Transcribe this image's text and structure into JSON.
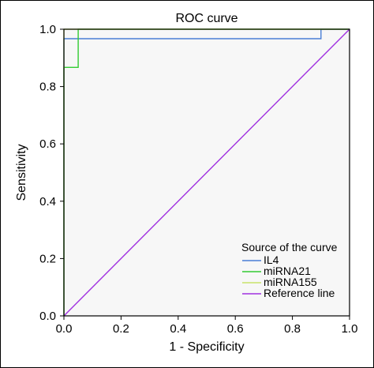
{
  "chart_data": {
    "type": "line",
    "title": "ROC curve",
    "xlabel": "1 - Specificity",
    "ylabel": "Sensitivity",
    "xlim": [
      0,
      1
    ],
    "ylim": [
      0,
      1
    ],
    "xticks": [
      "0.0",
      "0.2",
      "0.4",
      "0.6",
      "0.8",
      "1.0"
    ],
    "yticks": [
      "0.0",
      "0.2",
      "0.4",
      "0.6",
      "0.8",
      "1.0"
    ],
    "grid": false,
    "legend": {
      "title": "Source of the curve",
      "placement": "bottom-right"
    },
    "series": [
      {
        "name": "IL4",
        "color": "#4a7fd6",
        "points": [
          [
            0.0,
            0.0
          ],
          [
            0.0,
            0.967
          ],
          [
            0.9,
            0.967
          ],
          [
            0.9,
            1.0
          ],
          [
            1.0,
            1.0
          ]
        ]
      },
      {
        "name": "miRNA21",
        "color": "#33cc33",
        "points": [
          [
            0.0,
            0.0
          ],
          [
            0.0,
            0.867
          ],
          [
            0.05,
            0.867
          ],
          [
            0.05,
            1.0
          ],
          [
            1.0,
            1.0
          ]
        ]
      },
      {
        "name": "miRNA155",
        "color": "#c9e36a",
        "points": [
          [
            0.0,
            0.0
          ],
          [
            0.0,
            1.0
          ],
          [
            1.0,
            1.0
          ]
        ]
      },
      {
        "name": "Reference line",
        "color": "#a030e0",
        "points": [
          [
            0.0,
            0.0
          ],
          [
            1.0,
            1.0
          ]
        ]
      }
    ]
  }
}
